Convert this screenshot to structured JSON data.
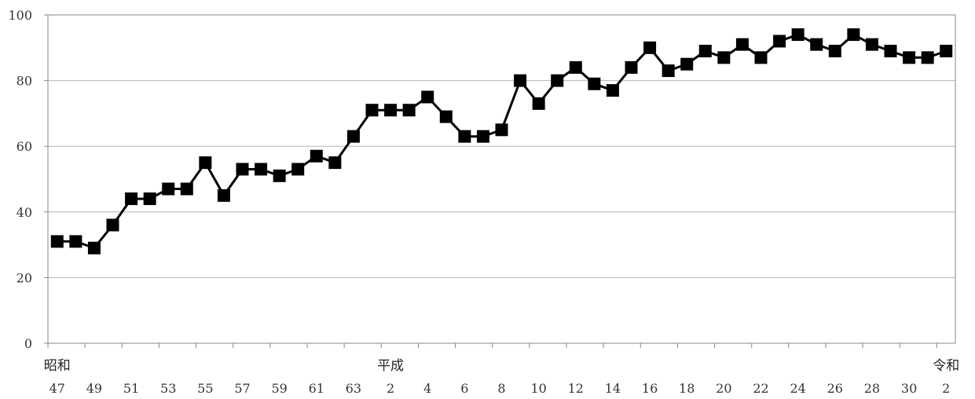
{
  "chart_data": {
    "type": "line",
    "title": "",
    "xlabel": "",
    "ylabel": "",
    "ylim": [
      0,
      100
    ],
    "y_ticks": [
      "0",
      "20",
      "40",
      "60",
      "80",
      "100"
    ],
    "grid": "horizontal",
    "legend": "none",
    "marker": "square",
    "series": [
      {
        "values": [
          31,
          31,
          29,
          36,
          44,
          44,
          47,
          47,
          55,
          45,
          53,
          53,
          51,
          53,
          57,
          55,
          63,
          71,
          71,
          71,
          75,
          69,
          63,
          63,
          65,
          80,
          73,
          80,
          84,
          79,
          77,
          84,
          90,
          83,
          85,
          89,
          87,
          91,
          87,
          92,
          94,
          91,
          89,
          94,
          91,
          89,
          87,
          87,
          89
        ]
      }
    ],
    "x_tick_labels": [
      {
        "index": 0,
        "era": "昭和",
        "num": "47"
      },
      {
        "index": 2,
        "num": "49"
      },
      {
        "index": 4,
        "num": "51"
      },
      {
        "index": 6,
        "num": "53"
      },
      {
        "index": 8,
        "num": "55"
      },
      {
        "index": 10,
        "num": "57"
      },
      {
        "index": 12,
        "num": "59"
      },
      {
        "index": 14,
        "num": "61"
      },
      {
        "index": 16,
        "num": "63"
      },
      {
        "index": 18,
        "era": "平成",
        "num": "2"
      },
      {
        "index": 20,
        "num": "4"
      },
      {
        "index": 22,
        "num": "6"
      },
      {
        "index": 24,
        "num": "8"
      },
      {
        "index": 26,
        "num": "10"
      },
      {
        "index": 28,
        "num": "12"
      },
      {
        "index": 30,
        "num": "14"
      },
      {
        "index": 32,
        "num": "16"
      },
      {
        "index": 34,
        "num": "18"
      },
      {
        "index": 36,
        "num": "20"
      },
      {
        "index": 38,
        "num": "22"
      },
      {
        "index": 40,
        "num": "24"
      },
      {
        "index": 42,
        "num": "26"
      },
      {
        "index": 44,
        "num": "28"
      },
      {
        "index": 46,
        "num": "30"
      },
      {
        "index": 48,
        "era": "令和",
        "num": "2"
      }
    ],
    "colors": {
      "line": "#000000",
      "grid": "#b4b4b4",
      "axis": "#888888"
    }
  }
}
